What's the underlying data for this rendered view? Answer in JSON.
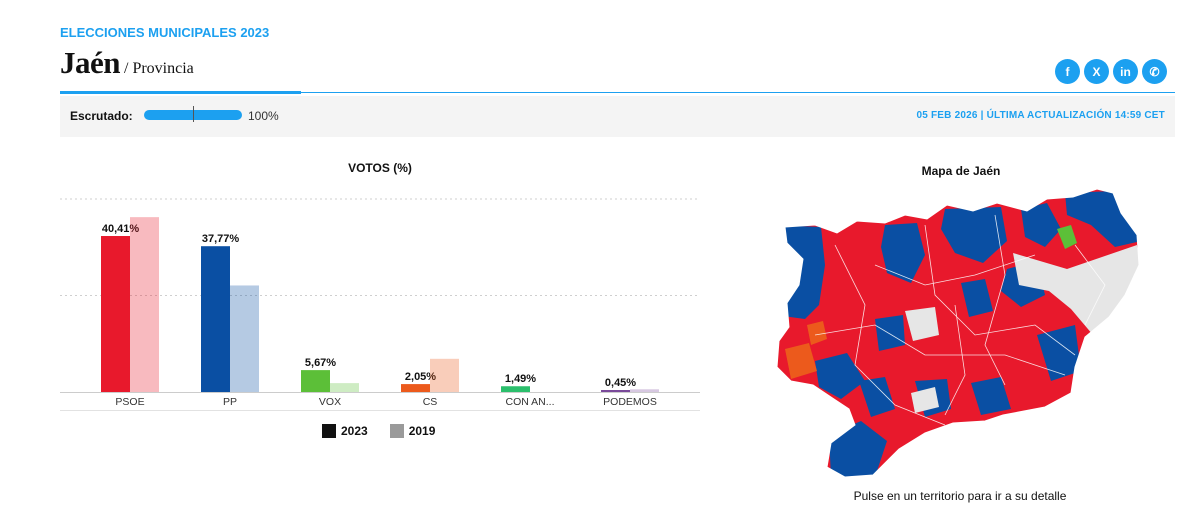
{
  "header": {
    "kicker": "ELECCIONES MUNICIPALES 2023",
    "title": "Jaén",
    "subtitle": "/ Provincia"
  },
  "share": [
    {
      "icon": "facebook-icon",
      "glyph": "f"
    },
    {
      "icon": "x-icon",
      "glyph": "X"
    },
    {
      "icon": "linkedin-icon",
      "glyph": "in"
    },
    {
      "icon": "whatsapp-icon",
      "glyph": "✆"
    }
  ],
  "status": {
    "label": "Escrutado:",
    "progress": 100,
    "progress_text": "100%",
    "updated": "05 FEB 2026 | ÚLTIMA ACTUALIZACIÓN 14:59 CET"
  },
  "colors": {
    "accent": "#1ca0f0",
    "PSOE": "#e8192c",
    "PP": "#0a4fa3",
    "VOX": "#5cbf38",
    "CS": "#ec5a1c",
    "CON_AN": "#2bbf6c",
    "PODEMOS": "#7a4a9a",
    "blank": "#e6e6e6"
  },
  "chart_data": {
    "type": "bar",
    "title": "VOTOS (%)",
    "categories": [
      "PSOE",
      "PP",
      "VOX",
      "CS",
      "CON AN...",
      "PODEMOS"
    ],
    "series": [
      {
        "name": "2023",
        "values": [
          40.41,
          37.77,
          5.67,
          2.05,
          1.49,
          0.45
        ],
        "labels": [
          "40,41%",
          "37,77%",
          "5,67%",
          "2,05%",
          "1,49%",
          "0,45%"
        ]
      },
      {
        "name": "2019",
        "values": [
          45.3,
          27.6,
          2.3,
          8.6,
          null,
          0.7
        ]
      }
    ],
    "bar_colors": [
      "#e8192c",
      "#0a4fa3",
      "#5cbf38",
      "#ec5a1c",
      "#2bbf6c",
      "#7a4a9a"
    ],
    "ylim": [
      0,
      50
    ],
    "grid": true,
    "legend": "bottom"
  },
  "map": {
    "title": "Mapa de Jaén",
    "caption": "Pulse en un territorio para ir a su detalle"
  }
}
